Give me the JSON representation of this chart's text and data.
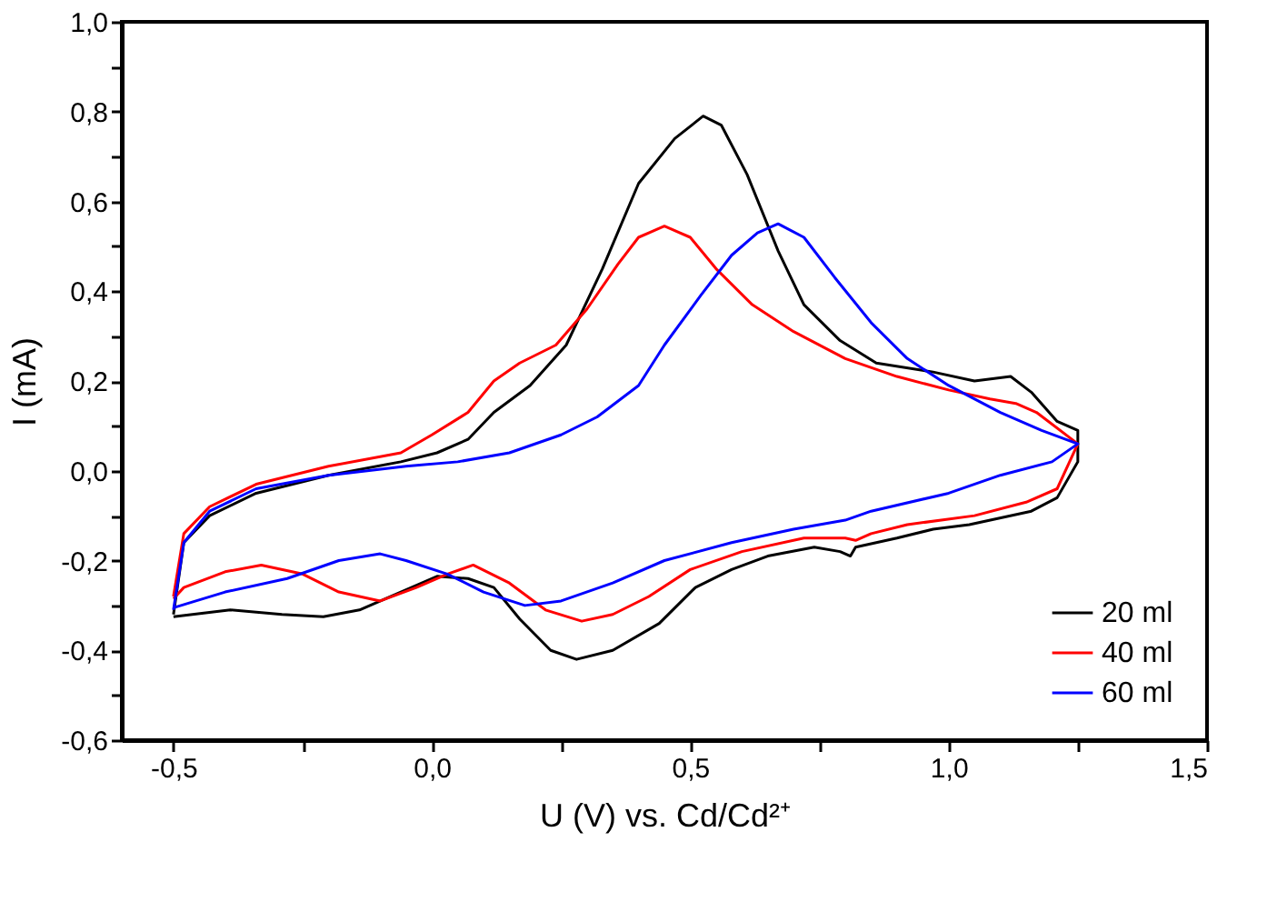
{
  "chart_data": {
    "type": "line",
    "xlabel": "U (V) vs. Cd/Cd²⁺",
    "ylabel": "I (mA)",
    "xlim": [
      -0.6,
      1.5
    ],
    "ylim": [
      -0.6,
      1.0
    ],
    "xticks": [
      {
        "value": -0.5,
        "label": "-0,5"
      },
      {
        "value": -0.25,
        "label": null
      },
      {
        "value": 0.0,
        "label": "0,0"
      },
      {
        "value": 0.25,
        "label": null
      },
      {
        "value": 0.5,
        "label": "0,5"
      },
      {
        "value": 0.75,
        "label": null
      },
      {
        "value": 1.0,
        "label": "1,0"
      },
      {
        "value": 1.25,
        "label": null
      },
      {
        "value": 1.5,
        "label": "1,5"
      }
    ],
    "yticks": [
      {
        "value": -0.6,
        "label": "-0,6"
      },
      {
        "value": -0.5,
        "label": null
      },
      {
        "value": -0.4,
        "label": "-0,4"
      },
      {
        "value": -0.3,
        "label": null
      },
      {
        "value": -0.2,
        "label": "-0,2"
      },
      {
        "value": -0.1,
        "label": null
      },
      {
        "value": 0.0,
        "label": "0,0"
      },
      {
        "value": 0.1,
        "label": null
      },
      {
        "value": 0.2,
        "label": "0,2"
      },
      {
        "value": 0.3,
        "label": null
      },
      {
        "value": 0.4,
        "label": "0,4"
      },
      {
        "value": 0.5,
        "label": null
      },
      {
        "value": 0.6,
        "label": "0,6"
      },
      {
        "value": 0.7,
        "label": null
      },
      {
        "value": 0.8,
        "label": "0,8"
      },
      {
        "value": 0.9,
        "label": null
      },
      {
        "value": 1.0,
        "label": "1,0"
      }
    ],
    "grid": false,
    "legend": "bottom right",
    "marker": "none",
    "line_style": "solid",
    "series": [
      {
        "name": "20 ml",
        "color": "#000000",
        "x": [
          -0.5,
          -0.48,
          -0.43,
          -0.34,
          -0.2,
          -0.06,
          0.01,
          0.07,
          0.12,
          0.19,
          0.26,
          0.33,
          0.4,
          0.47,
          0.525,
          0.56,
          0.61,
          0.67,
          0.72,
          0.79,
          0.86,
          0.97,
          1.05,
          1.12,
          1.16,
          1.21,
          1.25,
          1.25,
          1.21,
          1.16,
          1.04,
          0.97,
          0.9,
          0.82,
          0.81,
          0.79,
          0.74,
          0.65,
          0.58,
          0.51,
          0.44,
          0.35,
          0.28,
          0.23,
          0.17,
          0.12,
          0.07,
          0.01,
          -0.06,
          -0.14,
          -0.21,
          -0.29,
          -0.39,
          -0.5
        ],
        "values": [
          -0.32,
          -0.16,
          -0.1,
          -0.05,
          -0.01,
          0.02,
          0.04,
          0.07,
          0.13,
          0.19,
          0.28,
          0.45,
          0.64,
          0.74,
          0.79,
          0.77,
          0.66,
          0.49,
          0.37,
          0.29,
          0.24,
          0.22,
          0.2,
          0.21,
          0.175,
          0.11,
          0.09,
          0.02,
          -0.06,
          -0.09,
          -0.12,
          -0.13,
          -0.15,
          -0.17,
          -0.19,
          -0.18,
          -0.17,
          -0.19,
          -0.22,
          -0.26,
          -0.34,
          -0.4,
          -0.42,
          -0.4,
          -0.33,
          -0.26,
          -0.24,
          -0.235,
          -0.27,
          -0.31,
          -0.325,
          -0.32,
          -0.31,
          -0.325
        ]
      },
      {
        "name": "40 ml",
        "color": "#ff0000",
        "x": [
          -0.5,
          -0.48,
          -0.43,
          -0.34,
          -0.2,
          -0.06,
          0.0,
          0.07,
          0.12,
          0.17,
          0.24,
          0.3,
          0.36,
          0.4,
          0.45,
          0.5,
          0.55,
          0.62,
          0.7,
          0.8,
          0.9,
          1.0,
          1.08,
          1.13,
          1.17,
          1.25,
          1.21,
          1.15,
          1.05,
          0.92,
          0.85,
          0.82,
          0.8,
          0.72,
          0.6,
          0.5,
          0.42,
          0.35,
          0.29,
          0.22,
          0.15,
          0.08,
          0.03,
          -0.03,
          -0.1,
          -0.18,
          -0.25,
          -0.33,
          -0.4,
          -0.48,
          -0.5
        ],
        "values": [
          -0.28,
          -0.14,
          -0.08,
          -0.03,
          0.01,
          0.04,
          0.08,
          0.13,
          0.2,
          0.24,
          0.28,
          0.36,
          0.46,
          0.52,
          0.545,
          0.52,
          0.45,
          0.37,
          0.31,
          0.25,
          0.21,
          0.18,
          0.16,
          0.15,
          0.13,
          0.06,
          -0.04,
          -0.07,
          -0.1,
          -0.12,
          -0.14,
          -0.155,
          -0.15,
          -0.15,
          -0.18,
          -0.22,
          -0.28,
          -0.32,
          -0.335,
          -0.31,
          -0.25,
          -0.21,
          -0.23,
          -0.26,
          -0.29,
          -0.27,
          -0.23,
          -0.21,
          -0.225,
          -0.26,
          -0.285
        ]
      },
      {
        "name": "60 ml",
        "color": "#0000ff",
        "x": [
          -0.5,
          -0.48,
          -0.43,
          -0.34,
          -0.2,
          -0.05,
          0.05,
          0.15,
          0.25,
          0.32,
          0.4,
          0.45,
          0.52,
          0.58,
          0.63,
          0.67,
          0.72,
          0.78,
          0.85,
          0.92,
          1.0,
          1.1,
          1.18,
          1.25,
          1.2,
          1.1,
          1.0,
          0.85,
          0.8,
          0.7,
          0.58,
          0.45,
          0.35,
          0.25,
          0.18,
          0.1,
          0.03,
          -0.05,
          -0.1,
          -0.18,
          -0.28,
          -0.4,
          -0.5
        ],
        "values": [
          -0.31,
          -0.16,
          -0.09,
          -0.04,
          -0.01,
          0.01,
          0.02,
          0.04,
          0.08,
          0.12,
          0.19,
          0.28,
          0.39,
          0.48,
          0.53,
          0.55,
          0.52,
          0.43,
          0.33,
          0.25,
          0.19,
          0.13,
          0.09,
          0.06,
          0.02,
          -0.01,
          -0.05,
          -0.09,
          -0.11,
          -0.13,
          -0.16,
          -0.2,
          -0.25,
          -0.29,
          -0.3,
          -0.27,
          -0.23,
          -0.2,
          -0.185,
          -0.2,
          -0.24,
          -0.27,
          -0.305
        ]
      }
    ]
  }
}
